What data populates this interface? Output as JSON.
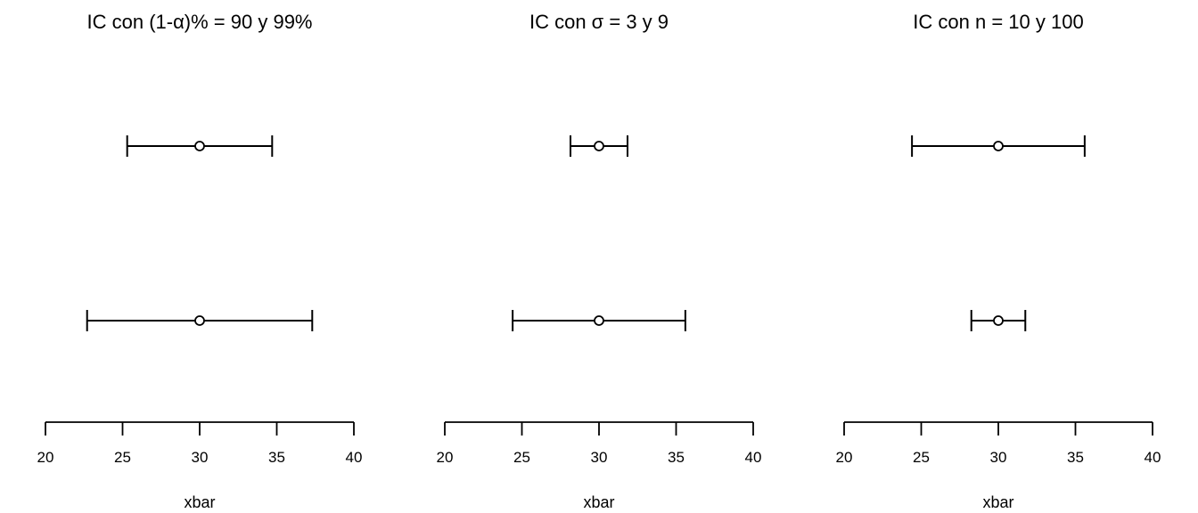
{
  "chart_data": [
    {
      "type": "errorbar",
      "title": "IC con (1-α)% = 90 y 99%",
      "xlabel": "xbar",
      "xlim": [
        20,
        40
      ],
      "xticks": [
        "20",
        "25",
        "30",
        "35",
        "40"
      ],
      "intervals": [
        {
          "estimate": 30,
          "lower": 25.3,
          "upper": 34.7
        },
        {
          "estimate": 30,
          "lower": 22.7,
          "upper": 37.3
        }
      ]
    },
    {
      "type": "errorbar",
      "title": "IC con σ = 3 y 9",
      "xlabel": "xbar",
      "xlim": [
        20,
        40
      ],
      "xticks": [
        "20",
        "25",
        "30",
        "35",
        "40"
      ],
      "intervals": [
        {
          "estimate": 30,
          "lower": 28.15,
          "upper": 31.85
        },
        {
          "estimate": 30,
          "lower": 24.4,
          "upper": 35.6
        }
      ]
    },
    {
      "type": "errorbar",
      "title": "IC con n = 10 y 100",
      "xlabel": "xbar",
      "xlim": [
        20,
        40
      ],
      "xticks": [
        "20",
        "25",
        "30",
        "35",
        "40"
      ],
      "intervals": [
        {
          "estimate": 30,
          "lower": 24.4,
          "upper": 35.6
        },
        {
          "estimate": 30,
          "lower": 28.25,
          "upper": 31.75
        }
      ]
    }
  ]
}
